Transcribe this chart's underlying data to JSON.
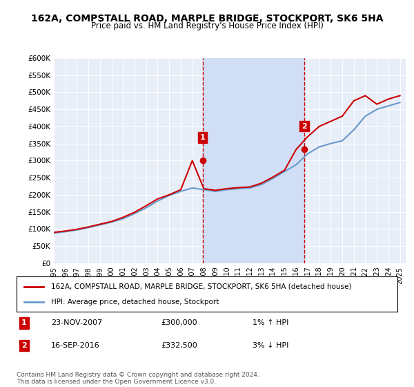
{
  "title": "162A, COMPSTALL ROAD, MARPLE BRIDGE, STOCKPORT, SK6 5HA",
  "subtitle": "Price paid vs. HM Land Registry's House Price Index (HPI)",
  "legend_label_red": "162A, COMPSTALL ROAD, MARPLE BRIDGE, STOCKPORT, SK6 5HA (detached house)",
  "legend_label_blue": "HPI: Average price, detached house, Stockport",
  "sale1_label": "1",
  "sale1_date": "23-NOV-2007",
  "sale1_price": "£300,000",
  "sale1_hpi": "1% ↑ HPI",
  "sale2_label": "2",
  "sale2_date": "16-SEP-2016",
  "sale2_price": "£332,500",
  "sale2_hpi": "3% ↓ HPI",
  "copyright": "Contains HM Land Registry data © Crown copyright and database right 2024.\nThis data is licensed under the Open Government Licence v3.0.",
  "ylim": [
    0,
    600000
  ],
  "yticks": [
    0,
    50000,
    100000,
    150000,
    200000,
    250000,
    300000,
    350000,
    400000,
    450000,
    500000,
    550000,
    600000
  ],
  "ytick_labels": [
    "£0",
    "£50K",
    "£100K",
    "£150K",
    "£200K",
    "£250K",
    "£300K",
    "£350K",
    "£400K",
    "£450K",
    "£500K",
    "£550K",
    "£600K"
  ],
  "xlim_start": 1995.0,
  "xlim_end": 2025.5,
  "hpi_color": "#6699cc",
  "price_color": "#cc0000",
  "sale1_x": 2007.9,
  "sale1_y": 300000,
  "sale2_x": 2016.7,
  "sale2_y": 332500,
  "hpi_years": [
    1995,
    1996,
    1997,
    1998,
    1999,
    2000,
    2001,
    2002,
    2003,
    2004,
    2005,
    2006,
    2007,
    2008,
    2009,
    2010,
    2011,
    2012,
    2013,
    2014,
    2015,
    2016,
    2017,
    2018,
    2019,
    2020,
    2021,
    2022,
    2023,
    2024,
    2025
  ],
  "hpi_values": [
    88000,
    92000,
    97000,
    104000,
    112000,
    120000,
    130000,
    145000,
    162000,
    182000,
    198000,
    210000,
    220000,
    215000,
    210000,
    215000,
    218000,
    220000,
    230000,
    248000,
    268000,
    288000,
    320000,
    340000,
    350000,
    358000,
    390000,
    430000,
    450000,
    460000,
    470000
  ],
  "price_years": [
    1995,
    1996,
    1997,
    1998,
    1999,
    2000,
    2001,
    2002,
    2003,
    2004,
    2005,
    2006,
    2007,
    2008,
    2009,
    2010,
    2011,
    2012,
    2013,
    2014,
    2015,
    2016,
    2017,
    2018,
    2019,
    2020,
    2021,
    2022,
    2023,
    2024,
    2025
  ],
  "price_values": [
    90000,
    94000,
    99000,
    106000,
    114000,
    122000,
    134000,
    149000,
    168000,
    188000,
    200000,
    215000,
    300000,
    218000,
    213000,
    218000,
    221000,
    223000,
    234000,
    252000,
    272000,
    332500,
    370000,
    400000,
    415000,
    430000,
    475000,
    490000,
    465000,
    480000,
    490000
  ],
  "shaded_x1": 2007.9,
  "shaded_x2": 2016.7,
  "background_color": "#ffffff",
  "plot_bg_color": "#e8eef8",
  "shaded_color": "#d0dff5"
}
